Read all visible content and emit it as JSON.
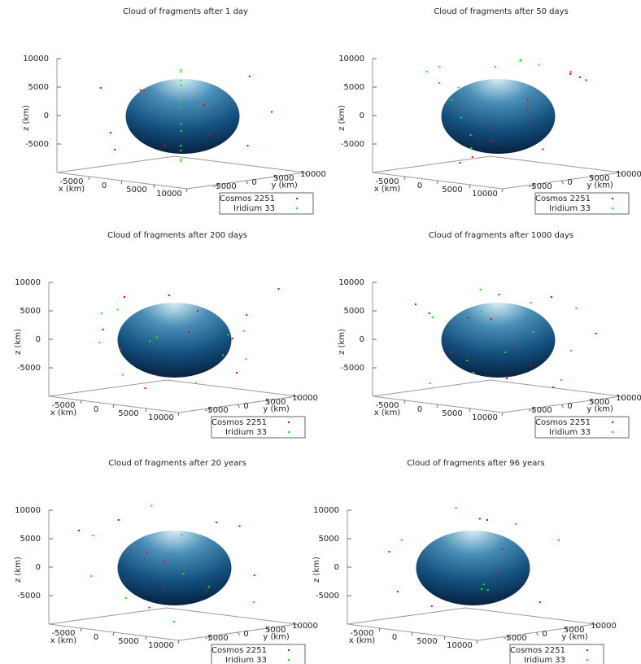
{
  "chart_data": [
    {
      "type": "scatter3d",
      "title": "Cloud of fragments after 1 day",
      "xlabel": "x (km)",
      "ylabel": "y (km)",
      "zlabel": "z (km)",
      "xlim": [
        -10000,
        10000
      ],
      "ylim": [
        -10000,
        10000
      ],
      "zlim": [
        -10000,
        10000
      ],
      "xticks": [
        -5000,
        0,
        5000,
        10000
      ],
      "yticks": [
        -5000,
        0,
        5000,
        10000
      ],
      "zticks": [
        -5000,
        0,
        5000,
        10000
      ],
      "series": [
        {
          "name": "Cosmos 2251",
          "color": "#ff0000",
          "x": [
            -8000,
            7000,
            -6000,
            8500,
            3000,
            -9000,
            6000,
            -3000,
            2000,
            -7000,
            9000,
            -2000
          ],
          "y": [
            2000,
            -3000,
            -7000,
            6000,
            8000,
            -2000,
            5000,
            9000,
            -8500,
            5000,
            -6000,
            -9000
          ],
          "z": [
            3000,
            -2000,
            5000,
            1000,
            -6000,
            -4000,
            7000,
            -1000,
            6000,
            -7000,
            4000,
            -5000
          ]
        },
        {
          "name": "Iridium 33",
          "color": "#00ff00",
          "x": [
            0,
            2500,
            4300,
            5000,
            4300,
            2500,
            0,
            -2500,
            -4300,
            -5000,
            -4300,
            -2500
          ],
          "y": [
            0,
            -2750,
            -4800,
            -5500,
            -4800,
            -2750,
            0,
            2750,
            4800,
            5500,
            4800,
            2750
          ],
          "z": [
            8000,
            6900,
            4000,
            0,
            -4000,
            -6900,
            -8000,
            6900,
            4000,
            0,
            -4000,
            -6900
          ]
        }
      ]
    },
    {
      "type": "scatter3d",
      "title": "Cloud of fragments after 50 days",
      "xlabel": "x (km)",
      "ylabel": "y (km)",
      "zlabel": "z (km)",
      "xlim": [
        -10000,
        10000
      ],
      "ylim": [
        -10000,
        10000
      ],
      "zlim": [
        -10000,
        10000
      ],
      "xticks": [
        -5000,
        0,
        5000,
        10000
      ],
      "yticks": [
        -5000,
        0,
        5000,
        10000
      ],
      "zticks": [
        -5000,
        0,
        5000,
        10000
      ],
      "series": [
        {
          "name": "Cosmos 2251",
          "color": "#ff0000",
          "x": [
            5000,
            6000,
            5500,
            3000,
            1000,
            4000,
            -1000,
            2000,
            6500,
            0,
            3500,
            -2000
          ],
          "y": [
            7000,
            7500,
            6500,
            2000,
            -2000,
            1000,
            -3000,
            3000,
            8000,
            -1000,
            4000,
            -4000
          ],
          "z": [
            7000,
            6500,
            7500,
            3000,
            -4000,
            -1000,
            -7000,
            1000,
            6000,
            -2000,
            -6000,
            -8000
          ]
        },
        {
          "name": "Iridium 33",
          "color": "#00ff00",
          "x": [
            -7000,
            -6000,
            -5000,
            -4000,
            -2000,
            0,
            2000,
            -8000,
            -3000,
            -6500,
            1000,
            -4500
          ],
          "y": [
            -2000,
            -1000,
            -500,
            0,
            2000,
            4000,
            5000,
            -3000,
            -1000,
            -2500,
            3000,
            -1500
          ],
          "z": [
            5000,
            2000,
            -1000,
            -4000,
            8000,
            9000,
            8500,
            7000,
            -6000,
            8000,
            9500,
            4500
          ]
        }
      ]
    },
    {
      "type": "scatter3d",
      "title": "Cloud of fragments after 200 days",
      "xlabel": "x (km)",
      "ylabel": "y (km)",
      "zlabel": "z (km)",
      "xlim": [
        -10000,
        10000
      ],
      "ylim": [
        -10000,
        10000
      ],
      "zlim": [
        -10000,
        10000
      ],
      "xticks": [
        -5000,
        0,
        5000,
        10000
      ],
      "yticks": [
        -5000,
        0,
        5000,
        10000
      ],
      "zticks": [
        -5000,
        0,
        5000,
        10000
      ],
      "series": [
        {
          "name": "Cosmos 2251",
          "color": "#ff0000",
          "x": [
            8000,
            -6000,
            3000,
            -8000,
            5000,
            -2000,
            7000,
            -5000,
            2000,
            9000,
            -9000,
            1000
          ],
          "y": [
            2000,
            6000,
            -8000,
            -3000,
            7000,
            -6000,
            -5000,
            3000,
            2000,
            8000,
            1000,
            9000
          ],
          "z": [
            -5000,
            6000,
            -7000,
            1000,
            4000,
            8000,
            3000,
            -7500,
            5000,
            9000,
            -3000,
            -1000
          ]
        },
        {
          "name": "Iridium 33",
          "color": "#00ff00",
          "x": [
            8500,
            7400,
            4250,
            0,
            -4250,
            -7400,
            -8500,
            -7400,
            -4250,
            0,
            4250,
            7400
          ],
          "y": [
            0,
            4250,
            7400,
            8500,
            7400,
            4250,
            0,
            -4250,
            -7400,
            -8500,
            -7400,
            -4250
          ],
          "z": [
            2000,
            -3000,
            1000,
            -4000,
            3000,
            -2000,
            4000,
            -1000,
            5000,
            -5000,
            2000,
            -6000
          ]
        }
      ]
    },
    {
      "type": "scatter3d",
      "title": "Cloud of fragments after 1000 days",
      "xlabel": "x (km)",
      "ylabel": "y (km)",
      "zlabel": "z (km)",
      "xlim": [
        -10000,
        10000
      ],
      "ylim": [
        -10000,
        10000
      ],
      "zlim": [
        -10000,
        10000
      ],
      "xticks": [
        -5000,
        0,
        5000,
        10000
      ],
      "yticks": [
        -5000,
        0,
        5000,
        10000
      ],
      "zticks": [
        -5000,
        0,
        5000,
        10000
      ],
      "series": [
        {
          "name": "Cosmos 2251",
          "color": "#ff0000",
          "x": [
            -8000,
            7000,
            3000,
            -4000,
            6000,
            -6000,
            1000,
            8000,
            -2000,
            4000,
            -7000,
            0
          ],
          "y": [
            4000,
            -6000,
            6000,
            -7000,
            3000,
            -1000,
            -2000,
            8000,
            8000,
            -4000,
            -6000,
            3000
          ],
          "z": [
            2000,
            -5000,
            7000,
            5000,
            -8000,
            -3000,
            4000,
            1000,
            -6000,
            9000,
            6000,
            -2000
          ]
        },
        {
          "name": "Iridium 33",
          "color": "#00ff00",
          "x": [
            9000,
            -7000,
            4000,
            -3000,
            6000,
            -8000,
            2000,
            8000,
            -5000,
            0,
            -9000,
            5000
          ],
          "y": [
            1000,
            5000,
            -7000,
            -8000,
            6000,
            -2000,
            4000,
            -3000,
            7000,
            -5000,
            6000,
            8000
          ],
          "z": [
            -6000,
            7000,
            6500,
            -7000,
            -2000,
            3000,
            1000,
            8000,
            -4000,
            -3000,
            -8000,
            5000
          ]
        }
      ]
    },
    {
      "type": "scatter3d",
      "title": "Cloud of fragments after 20 years",
      "xlabel": "x (km)",
      "ylabel": "y (km)",
      "zlabel": "z (km)",
      "xlim": [
        -10000,
        10000
      ],
      "ylim": [
        -10000,
        10000
      ],
      "zlim": [
        -10000,
        10000
      ],
      "xticks": [
        -5000,
        0,
        5000,
        10000
      ],
      "yticks": [
        -5000,
        0,
        5000,
        10000
      ],
      "zticks": [
        -5000,
        0,
        5000,
        10000
      ],
      "series": [
        {
          "name": "Cosmos 2251",
          "color": "#ff0000",
          "x": [
            -9000,
            4000,
            -2000,
            7000,
            -6000,
            3000,
            6000,
            -4000,
            0,
            8000
          ],
          "y": [
            -6000,
            3000,
            -7000,
            -2000,
            5000,
            8000,
            -8000,
            0,
            -4000,
            5000
          ],
          "z": [
            6000,
            8000,
            9000,
            -3000,
            -5000,
            6500,
            3000,
            2000,
            -6500,
            -1000
          ]
        },
        {
          "name": "Iridium 33",
          "color": "#00ff00",
          "x": [
            -6000,
            5000,
            -8000,
            7000,
            2000,
            -3000,
            8000,
            -5000,
            1000,
            -9000
          ],
          "y": [
            3000,
            -4000,
            -5000,
            6000,
            -2000,
            7000,
            -7000,
            -8000,
            5000,
            2000
          ],
          "z": [
            9500,
            7000,
            -2000,
            -6000,
            -9000,
            4000,
            1000,
            6000,
            -4000,
            -7000
          ]
        }
      ]
    },
    {
      "type": "scatter3d",
      "title": "Cloud of fragments after 96 years",
      "xlabel": "x (km)",
      "ylabel": "y (km)",
      "zlabel": "z (km)",
      "xlim": [
        -10000,
        10000
      ],
      "ylim": [
        -10000,
        10000
      ],
      "zlim": [
        -10000,
        10000
      ],
      "xticks": [
        -5000,
        0,
        5000,
        10000
      ],
      "yticks": [
        -5000,
        0,
        5000,
        10000
      ],
      "zticks": [
        -5000,
        0,
        5000,
        10000
      ],
      "series": [
        {
          "name": "Cosmos 2251",
          "color": "#ff0000",
          "x": [
            -9000,
            4000,
            -3000,
            6000,
            -5000,
            2000,
            9000,
            -7000
          ],
          "y": [
            -4000,
            -3000,
            6000,
            5000,
            -7000,
            3000,
            -5000,
            1000
          ],
          "z": [
            2000,
            9500,
            7000,
            -6000,
            -4000,
            3000,
            1000,
            -8000
          ]
        },
        {
          "name": "Iridium 33",
          "color": "#00ff00",
          "x": [
            -8000,
            5000,
            7000,
            -2000,
            3000,
            -6000,
            1000,
            8000
          ],
          "y": [
            -3000,
            2000,
            -6000,
            5000,
            -7000,
            4000,
            1000,
            6000
          ],
          "z": [
            4000,
            8000,
            -2000,
            -5000,
            6000,
            9000,
            -3000,
            5000
          ]
        }
      ]
    }
  ]
}
